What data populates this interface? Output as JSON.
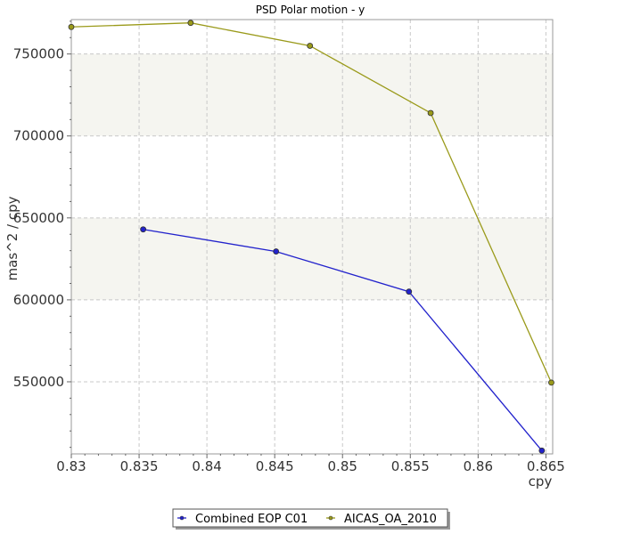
{
  "chart_data": {
    "type": "line",
    "title": "PSD Polar motion - y",
    "xlabel": "cpy",
    "ylabel": "mas^2 / cpy",
    "xlim": [
      0.83,
      0.8655
    ],
    "ylim": [
      506000,
      771000
    ],
    "x_ticks": [
      0.83,
      0.835,
      0.84,
      0.845,
      0.85,
      0.855,
      0.86,
      0.865
    ],
    "x_tick_labels": [
      "0.83",
      "0.835",
      "0.84",
      "0.845",
      "0.85",
      "0.855",
      "0.86",
      "0.865"
    ],
    "y_ticks": [
      550000,
      600000,
      650000,
      700000,
      750000
    ],
    "y_tick_labels": [
      "550000",
      "600000",
      "650000",
      "700000",
      "750000"
    ],
    "grid": true,
    "legend_position": "bottom",
    "series": [
      {
        "name": "Combined EOP C01",
        "color": "#2222cc",
        "x": [
          0.8353,
          0.8451,
          0.8549,
          0.8647
        ],
        "y": [
          643000,
          629500,
          605000,
          508000
        ]
      },
      {
        "name": "AICAS_OA_2010",
        "color": "#9a9a1a",
        "x": [
          0.83,
          0.8388,
          0.8476,
          0.8565,
          0.8654
        ],
        "y": [
          766500,
          769000,
          755000,
          714000,
          549500
        ]
      }
    ]
  }
}
